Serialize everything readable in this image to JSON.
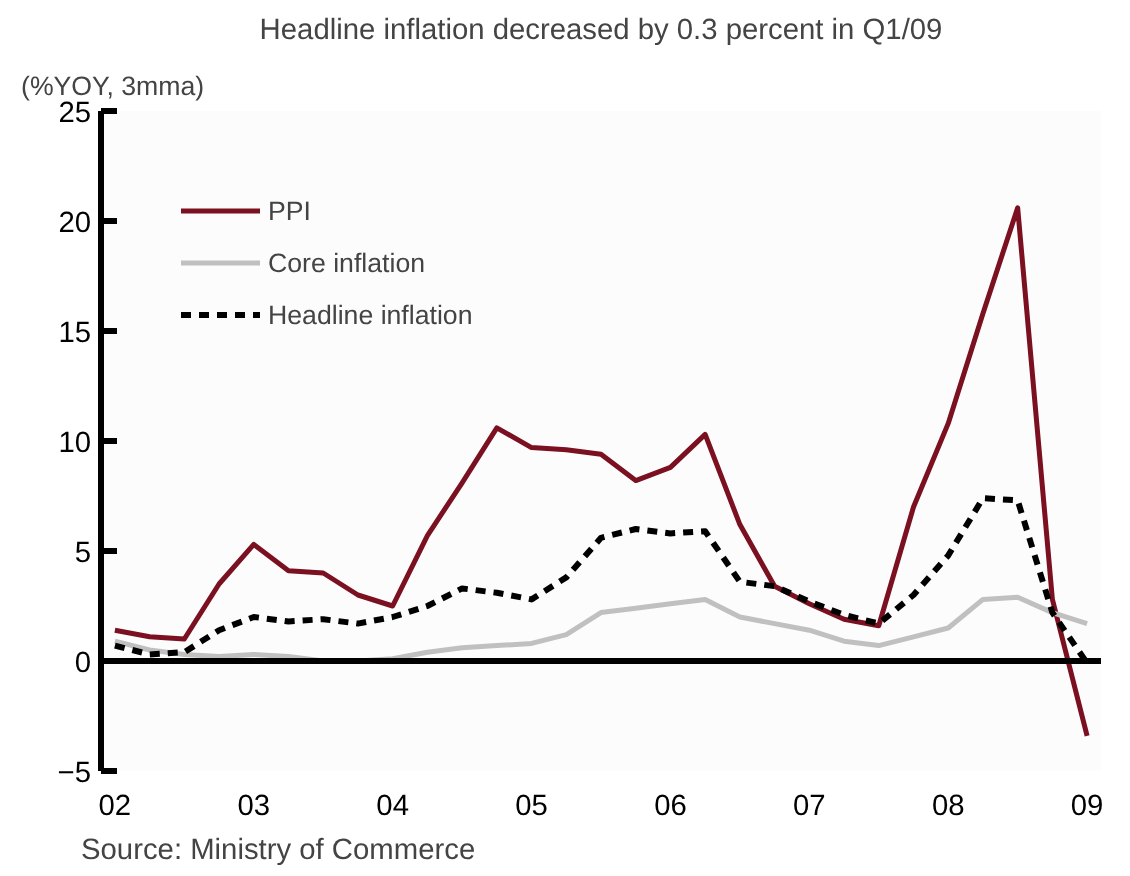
{
  "chart_data": {
    "type": "line",
    "title": "Headline inflation decreased by 0.3 percent in Q1/09",
    "ylabel": "(%YOY, 3mma)",
    "x": [
      2002,
      2002.25,
      2002.5,
      2002.75,
      2003,
      2003.25,
      2003.5,
      2003.75,
      2004,
      2004.25,
      2004.5,
      2004.75,
      2005,
      2005.25,
      2005.5,
      2005.75,
      2006,
      2006.25,
      2006.5,
      2006.75,
      2007,
      2007.25,
      2007.5,
      2007.75,
      2008,
      2008.25,
      2008.5,
      2008.75,
      2009
    ],
    "series": [
      {
        "name": "PPI",
        "color": "#7a1020",
        "line_style": "solid",
        "values": [
          1.4,
          1.1,
          1.0,
          3.5,
          5.3,
          4.1,
          4.0,
          3.0,
          2.5,
          5.7,
          8.1,
          10.6,
          9.7,
          9.6,
          9.4,
          8.2,
          8.8,
          10.3,
          6.2,
          3.4,
          2.6,
          1.9,
          1.6,
          7.0,
          10.8,
          15.8,
          20.6,
          2.8,
          -3.4
        ]
      },
      {
        "name": "Core inflation",
        "color": "#c0c0c0",
        "line_style": "solid",
        "values": [
          0.9,
          0.5,
          0.3,
          0.2,
          0.3,
          0.2,
          0.0,
          0.0,
          0.1,
          0.4,
          0.6,
          0.7,
          0.8,
          1.2,
          2.2,
          2.4,
          2.6,
          2.8,
          2.0,
          1.7,
          1.4,
          0.9,
          0.7,
          1.1,
          1.5,
          2.8,
          2.9,
          2.2,
          1.7
        ]
      },
      {
        "name": "Headline inflation",
        "color": "#000000",
        "line_style": "dashed",
        "values": [
          0.7,
          0.3,
          0.4,
          1.4,
          2.0,
          1.8,
          1.9,
          1.7,
          2.0,
          2.5,
          3.3,
          3.1,
          2.8,
          3.8,
          5.6,
          6.0,
          5.8,
          5.9,
          3.6,
          3.4,
          2.7,
          2.1,
          1.7,
          3.0,
          4.8,
          7.4,
          7.3,
          2.2,
          -0.1
        ]
      }
    ],
    "xlim": [
      2001.9,
      2009.1
    ],
    "ylim": [
      -5,
      25
    ],
    "yticks": [
      -5,
      0,
      5,
      10,
      15,
      20,
      25
    ],
    "xticks": [
      {
        "value": 2002,
        "label": "02"
      },
      {
        "value": 2003,
        "label": "03"
      },
      {
        "value": 2004,
        "label": "04"
      },
      {
        "value": 2005,
        "label": "05"
      },
      {
        "value": 2006,
        "label": "06"
      },
      {
        "value": 2007,
        "label": "07"
      },
      {
        "value": 2008,
        "label": "08"
      },
      {
        "value": 2009,
        "label": "09"
      }
    ],
    "ref_lines": [
      {
        "axis": "y",
        "value": 0,
        "color": "#000000"
      }
    ],
    "grid": false,
    "legend": "top left",
    "marker": "none",
    "annotations": [
      "Source: Ministry of Commerce"
    ]
  }
}
